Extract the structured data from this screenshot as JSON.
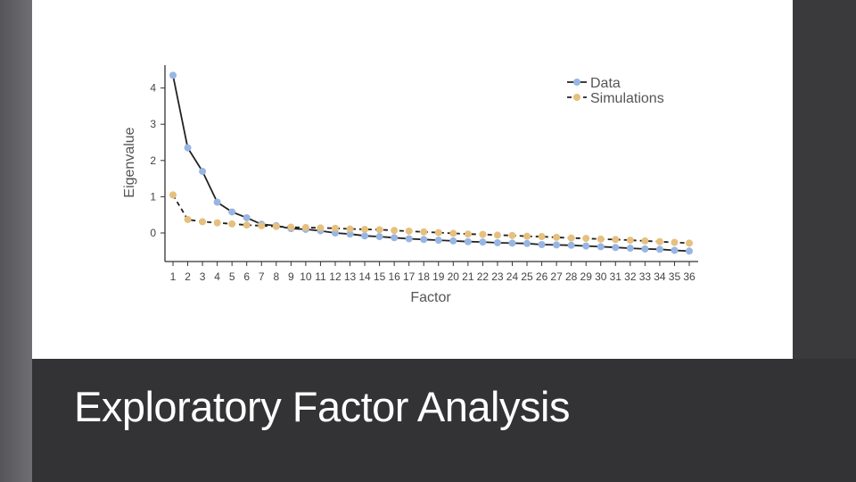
{
  "slide": {
    "title": "Exploratory Factor Analysis"
  },
  "colors": {
    "data_series": "#98b6e4",
    "simulation_series": "#e6c07e",
    "line": "#222222"
  },
  "chart_data": {
    "type": "line",
    "xlabel": "Factor",
    "ylabel": "Eigenvalue",
    "xlim": [
      1,
      36
    ],
    "ylim": [
      -0.75,
      4.5
    ],
    "yticks": [
      0,
      1,
      2,
      3,
      4
    ],
    "x": [
      1,
      2,
      3,
      4,
      5,
      6,
      7,
      8,
      9,
      10,
      11,
      12,
      13,
      14,
      15,
      16,
      17,
      18,
      19,
      20,
      21,
      22,
      23,
      24,
      25,
      26,
      27,
      28,
      29,
      30,
      31,
      32,
      33,
      34,
      35,
      36
    ],
    "series": [
      {
        "name": "Data",
        "line_style": "solid",
        "values": [
          4.35,
          2.35,
          1.7,
          0.85,
          0.58,
          0.42,
          0.24,
          0.2,
          0.12,
          0.1,
          0.06,
          0.0,
          -0.03,
          -0.08,
          -0.1,
          -0.13,
          -0.16,
          -0.18,
          -0.2,
          -0.22,
          -0.24,
          -0.25,
          -0.27,
          -0.28,
          -0.29,
          -0.32,
          -0.33,
          -0.34,
          -0.36,
          -0.38,
          -0.4,
          -0.42,
          -0.44,
          -0.45,
          -0.48,
          -0.5
        ]
      },
      {
        "name": "Simulations",
        "line_style": "dashed",
        "values": [
          1.05,
          0.37,
          0.31,
          0.28,
          0.25,
          0.22,
          0.2,
          0.18,
          0.16,
          0.15,
          0.14,
          0.13,
          0.11,
          0.1,
          0.09,
          0.07,
          0.05,
          0.03,
          0.01,
          -0.01,
          -0.03,
          -0.04,
          -0.06,
          -0.07,
          -0.09,
          -0.1,
          -0.12,
          -0.14,
          -0.15,
          -0.17,
          -0.18,
          -0.2,
          -0.22,
          -0.24,
          -0.26,
          -0.28
        ]
      }
    ],
    "legend_position": "top-right",
    "grid": false
  }
}
